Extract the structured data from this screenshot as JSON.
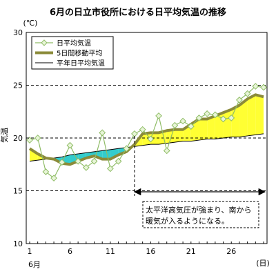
{
  "chart_data": {
    "type": "line",
    "title": "6月の日立市役所における日平均気温の推移",
    "y_unit": "(℃)",
    "ylabel": "気温",
    "x_unit": "(日)",
    "x_month_label": "6月",
    "ylim": [
      10,
      30
    ],
    "xlim": [
      1,
      30
    ],
    "y_ticks": [
      10,
      15,
      20,
      25,
      30
    ],
    "x_ticks": [
      1,
      6,
      11,
      16,
      21,
      26
    ],
    "dashed_gridlines_y": [
      15,
      20,
      25
    ],
    "x": [
      1,
      2,
      3,
      4,
      5,
      6,
      7,
      8,
      9,
      10,
      11,
      12,
      13,
      14,
      15,
      16,
      17,
      18,
      19,
      20,
      21,
      22,
      23,
      24,
      25,
      26,
      27,
      28,
      29,
      30
    ],
    "series": [
      {
        "name": "日平均気温",
        "style": "line-with-diamond-markers",
        "color": "#8fbc66",
        "marker_fill": "#e8f5d8",
        "values": [
          19.8,
          20.0,
          16.8,
          16.2,
          17.7,
          19.3,
          17.8,
          17.2,
          17.8,
          20.5,
          17.1,
          17.8,
          19.0,
          20.4,
          20.8,
          19.9,
          22.1,
          18.8,
          21.2,
          21.6,
          21.1,
          21.9,
          22.3,
          22.2,
          21.8,
          21.9,
          23.6,
          24.2,
          24.9,
          24.8
        ]
      },
      {
        "name": "5日間移動平均",
        "style": "thick-line",
        "color": "#8b8b3a",
        "values": [
          19.0,
          18.5,
          18.1,
          18.0,
          17.6,
          17.5,
          17.8,
          18.1,
          18.3,
          18.0,
          18.0,
          18.4,
          18.7,
          19.4,
          20.4,
          20.5,
          20.5,
          20.7,
          20.8,
          20.8,
          21.3,
          21.8,
          21.8,
          22.1,
          22.4,
          22.7,
          23.1,
          23.7,
          24.1,
          23.9
        ]
      },
      {
        "name": "平年日平均気温",
        "style": "thin-line",
        "color": "#000000",
        "values": [
          17.8,
          17.9,
          18.0,
          18.1,
          18.2,
          18.4,
          18.5,
          18.6,
          18.7,
          18.8,
          18.9,
          19.0,
          19.1,
          19.2,
          19.3,
          19.4,
          19.4,
          19.5,
          19.6,
          19.7,
          19.7,
          19.8,
          19.9,
          19.9,
          20.0,
          20.1,
          20.1,
          20.2,
          20.3,
          20.4
        ]
      }
    ],
    "fills": {
      "above_normal_color": "#ffff33",
      "below_normal_color": "#33cccc"
    },
    "annotation": {
      "line1": "太平洋高気圧が強まり、南から",
      "line2": "暖気が入るようになる。",
      "from_x": 14,
      "to_x": 30,
      "at_y": 14.9
    },
    "legend_position": "top-left"
  }
}
